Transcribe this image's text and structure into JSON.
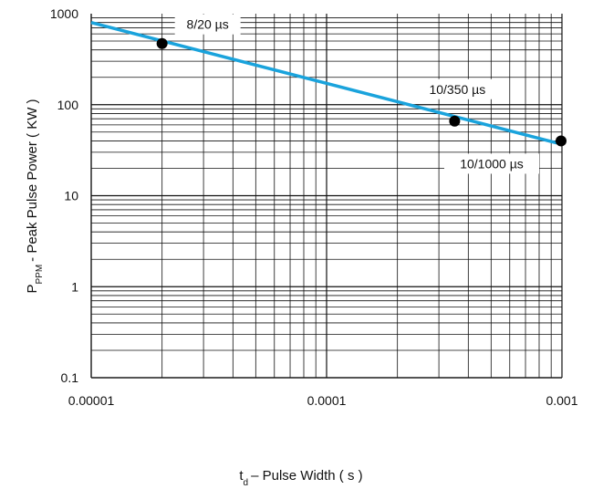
{
  "chart_data": {
    "type": "line",
    "title": "",
    "xscale": "log",
    "yscale": "log",
    "xlim": [
      1e-05,
      0.001
    ],
    "ylim": [
      0.1,
      1000
    ],
    "grid": true,
    "x_ticks": [
      {
        "value": 1e-05,
        "label": "0.00001"
      },
      {
        "value": 0.0001,
        "label": "0.0001"
      },
      {
        "value": 0.001,
        "label": "0.001"
      }
    ],
    "y_ticks": [
      {
        "value": 0.1,
        "label": "0.1"
      },
      {
        "value": 1,
        "label": "1"
      },
      {
        "value": 10,
        "label": "10"
      },
      {
        "value": 100,
        "label": "100"
      },
      {
        "value": 1000,
        "label": "1000"
      }
    ],
    "xlabel": {
      "main": "t",
      "sub": "d",
      "rest": "– Pulse Width ( s )"
    },
    "ylabel": {
      "main": "P",
      "sub": "PPM",
      "rest": "- Peak Pulse Power ( KW )"
    },
    "series": [
      {
        "color": "#1aa3dc",
        "x": [
          1e-05,
          0.00095
        ],
        "y": [
          800,
          38
        ]
      }
    ],
    "points": [
      {
        "x": 2e-05,
        "y": 470,
        "label": "8/20 µs"
      },
      {
        "x": 0.00035,
        "y": 66,
        "label": "10/350 µs"
      },
      {
        "x": 0.001,
        "y": 40,
        "label": "10/1000 µs"
      }
    ]
  }
}
